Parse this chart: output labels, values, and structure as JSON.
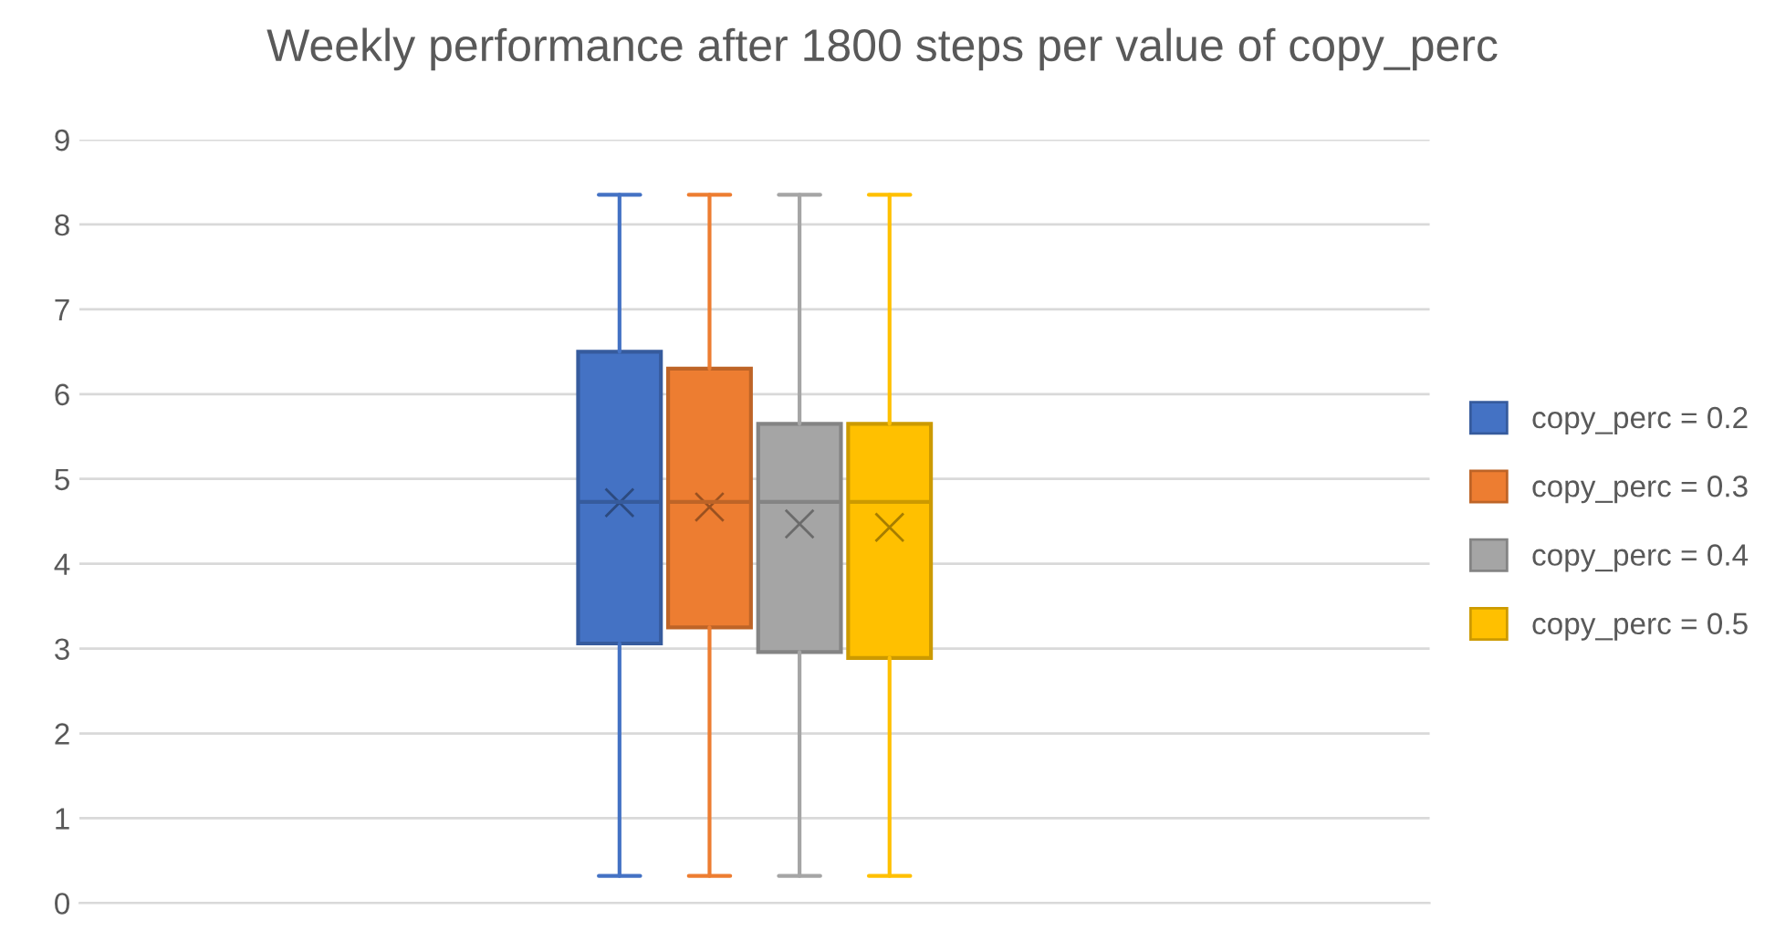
{
  "chart_data": {
    "type": "box",
    "title": "Weekly performance after 1800 steps per value of copy_perc",
    "categories": [
      null
    ],
    "series": [
      {
        "name": "copy_perc = 0.2",
        "color": "#4472c4",
        "boxes": [
          {
            "low": 0.32,
            "q1": 3.06,
            "median": 4.73,
            "q3": 6.5,
            "high": 8.35,
            "mean": 4.72
          }
        ]
      },
      {
        "name": "copy_perc = 0.3",
        "color": "#ed7d31",
        "boxes": [
          {
            "low": 0.32,
            "q1": 3.25,
            "median": 4.73,
            "q3": 6.3,
            "high": 8.35,
            "mean": 4.67
          }
        ]
      },
      {
        "name": "copy_perc = 0.4",
        "color": "#a5a5a5",
        "boxes": [
          {
            "low": 0.32,
            "q1": 2.96,
            "median": 4.73,
            "q3": 5.65,
            "high": 8.35,
            "mean": 4.47
          }
        ]
      },
      {
        "name": "copy_perc = 0.5",
        "color": "#ffc000",
        "boxes": [
          {
            "low": 0.32,
            "q1": 2.89,
            "median": 4.73,
            "q3": 5.65,
            "high": 8.35,
            "mean": 4.43
          }
        ]
      }
    ],
    "ylim": [
      0,
      9
    ],
    "yticks": [
      0,
      1,
      2,
      3,
      4,
      5,
      6,
      7,
      8,
      9
    ],
    "grid": "y",
    "legend": "right",
    "marker": "cross"
  }
}
